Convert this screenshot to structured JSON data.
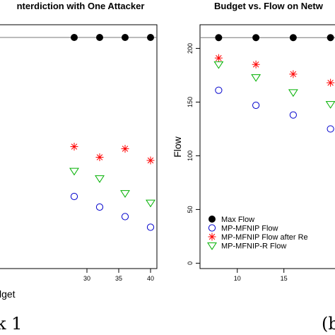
{
  "chart_data": [
    {
      "type": "scatter",
      "title": "nterdiction with One Attacker",
      "xlabel": "lget",
      "ylabel": "",
      "xlim": [
        16,
        41
      ],
      "ylim": [
        -8,
        222
      ],
      "x_ticks": [
        "30",
        "35",
        "40"
      ],
      "y_ticks": [],
      "caption": "k 1",
      "series": [
        {
          "marker": "filled-circle",
          "color": "#000000",
          "connected": true,
          "x": [
            28,
            32,
            36,
            40
          ],
          "y": [
            210,
            210,
            210,
            210
          ]
        },
        {
          "marker": "asterisk",
          "color": "#ff0000",
          "x": [
            28,
            32,
            36,
            40
          ],
          "y": [
            107,
            97,
            105,
            94
          ]
        },
        {
          "marker": "triangle-down",
          "color": "#00b000",
          "x": [
            28,
            32,
            36,
            40
          ],
          "y": [
            84,
            77,
            63,
            54
          ]
        },
        {
          "marker": "open-circle",
          "color": "#0000cc",
          "x": [
            28,
            32,
            36,
            40
          ],
          "y": [
            60,
            50,
            41,
            31
          ]
        }
      ]
    },
    {
      "type": "scatter",
      "title": "Budget vs. Flow on Netw",
      "xlabel": "",
      "ylabel": "Flow",
      "xlim": [
        6,
        22
      ],
      "ylim": [
        -5,
        222
      ],
      "x_ticks": [
        "10",
        "15"
      ],
      "y_ticks": [
        "0",
        "50",
        "100",
        "150",
        "200"
      ],
      "caption": "(b",
      "legend_position": "bottom-left",
      "legend": [
        {
          "label": "Max Flow",
          "marker": "filled-circle",
          "color": "#000000"
        },
        {
          "label": "MP-MFNIP Flow",
          "marker": "open-circle",
          "color": "#0000cc"
        },
        {
          "label": "MP-MFNIP Flow after Re",
          "marker": "asterisk",
          "color": "#ff0000"
        },
        {
          "label": "MP-MFNIP-R Flow",
          "marker": "triangle-down",
          "color": "#00b000"
        }
      ],
      "series": [
        {
          "marker": "filled-circle",
          "color": "#000000",
          "connected": true,
          "x": [
            8,
            12,
            16,
            20
          ],
          "y": [
            210,
            210,
            210,
            210
          ]
        },
        {
          "marker": "asterisk",
          "color": "#ff0000",
          "x": [
            8,
            12,
            16,
            20
          ],
          "y": [
            191,
            185,
            176,
            168
          ]
        },
        {
          "marker": "triangle-down",
          "color": "#00b000",
          "x": [
            8,
            12,
            16,
            20
          ],
          "y": [
            185,
            173,
            159,
            148
          ]
        },
        {
          "marker": "open-circle",
          "color": "#0000cc",
          "x": [
            8,
            12,
            16,
            20
          ],
          "y": [
            161,
            147,
            138,
            125
          ]
        }
      ]
    }
  ]
}
